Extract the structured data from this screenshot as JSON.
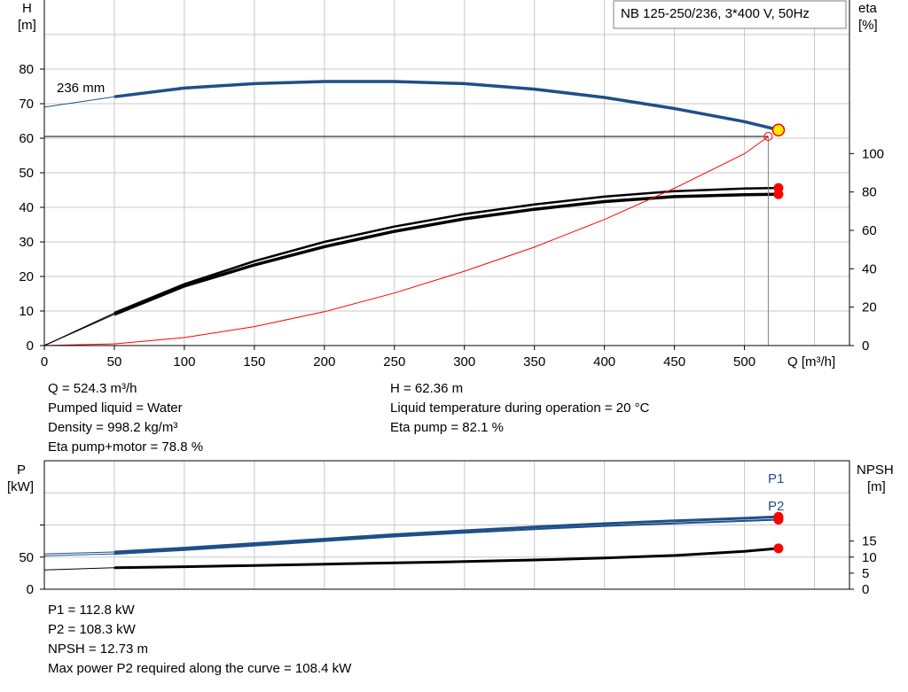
{
  "pump_title": "NB 125-250/236, 3*400 V, 50Hz",
  "curve_label": "236 mm",
  "colors": {
    "head": "#1f4f87",
    "efficiency": "#000000",
    "system": "#ff0000",
    "grid": "#c8c8c8",
    "duty_point": "#ffea00",
    "marker": "#ff0000"
  },
  "chart_data": [
    {
      "type": "line",
      "title": "NB 125-250/236, 3*400 V, 50Hz",
      "xlabel": "Q [m³/h]",
      "ylabel": "H\n[m]",
      "y2label": "eta\n[%]",
      "xlim": [
        0,
        575
      ],
      "ylim": [
        0,
        100
      ],
      "y2lim": [
        0,
        180
      ],
      "x_ticks": [
        "0",
        "50",
        "100",
        "150",
        "200",
        "250",
        "300",
        "350",
        "400",
        "450",
        "500"
      ],
      "y_ticks": [
        "0",
        "10",
        "20",
        "30",
        "40",
        "50",
        "60",
        "70",
        "80"
      ],
      "y2_ticks": [
        "0",
        "20",
        "40",
        "60",
        "80",
        "100"
      ],
      "grid": true,
      "series": [
        {
          "name": "236 mm",
          "axis": "y",
          "x": [
            0,
            50,
            100,
            150,
            200,
            250,
            300,
            350,
            400,
            450,
            500,
            524.3
          ],
          "y": [
            69,
            72,
            74.5,
            75.8,
            76.4,
            76.4,
            75.8,
            74.2,
            71.8,
            68.6,
            64.8,
            62.4
          ]
        },
        {
          "axis": "y2",
          "x": [
            0,
            50,
            100,
            150,
            200,
            250,
            300,
            350,
            400,
            450,
            500,
            524.3
          ],
          "y": [
            0,
            17,
            32,
            44,
            54,
            62,
            68.5,
            73.5,
            77.6,
            80.4,
            81.8,
            82.1
          ]
        },
        {
          "axis": "y2",
          "x": [
            0,
            50,
            100,
            150,
            200,
            250,
            300,
            350,
            400,
            450,
            500,
            524.3
          ],
          "y": [
            0,
            16.3,
            31,
            42,
            51.5,
            59.5,
            66,
            71,
            75,
            77.6,
            78.6,
            78.8
          ]
        },
        {
          "axis": "y",
          "x": [
            0,
            50,
            100,
            150,
            200,
            250,
            300,
            350,
            400,
            450,
            500,
            517
          ],
          "y": [
            0,
            0.5,
            2.3,
            5.5,
            9.8,
            15.2,
            21.5,
            28.5,
            36.5,
            45.5,
            55.5,
            60.5
          ]
        }
      ],
      "duty_point": {
        "Q": 524.3,
        "H": 62.36
      },
      "operating_point": {
        "Q": 517,
        "H": 60.5
      }
    },
    {
      "type": "line",
      "ylabel": "P\n[kW]",
      "y2label": "NPSH\n[m]",
      "xlim": [
        0,
        575
      ],
      "ylim": [
        0,
        200
      ],
      "y2lim": [
        0,
        40
      ],
      "y_ticks": [
        "0",
        "50"
      ],
      "y2_ticks": [
        "0",
        "5",
        "10",
        "15"
      ],
      "grid": true,
      "series": [
        {
          "name": "P1",
          "axis": "y",
          "x": [
            0,
            50,
            100,
            150,
            200,
            250,
            300,
            350,
            400,
            450,
            500,
            524.3
          ],
          "y": [
            55,
            58,
            64,
            71,
            78,
            85,
            91,
            97,
            102,
            106.5,
            110.5,
            112.8
          ]
        },
        {
          "name": "P2",
          "axis": "y",
          "x": [
            0,
            50,
            100,
            150,
            200,
            250,
            300,
            350,
            400,
            450,
            500,
            524.3
          ],
          "y": [
            52,
            55,
            61,
            68,
            75,
            82,
            88,
            93.5,
            98.5,
            102.5,
            106.3,
            108.3
          ]
        },
        {
          "axis": "y2",
          "x": [
            0,
            50,
            100,
            150,
            200,
            250,
            300,
            350,
            400,
            450,
            500,
            524.3
          ],
          "y": [
            6,
            6.7,
            7.0,
            7.4,
            7.8,
            8.2,
            8.6,
            9.1,
            9.7,
            10.5,
            11.8,
            12.73
          ]
        }
      ]
    }
  ],
  "results_top": {
    "left": [
      "Q = 524.3 m³/h",
      "Pumped liquid = Water",
      "Density = 998.2 kg/m³",
      "Eta pump+motor = 78.8 %"
    ],
    "right": [
      "H = 62.36 m",
      "Liquid temperature during operation = 20 °C",
      "Eta pump = 82.1 %"
    ]
  },
  "results_bottom": [
    "P1 = 112.8 kW",
    "P2 = 108.3 kW",
    "NPSH = 12.73 m",
    "Max power P2 required along the curve = 108.4 kW"
  ]
}
